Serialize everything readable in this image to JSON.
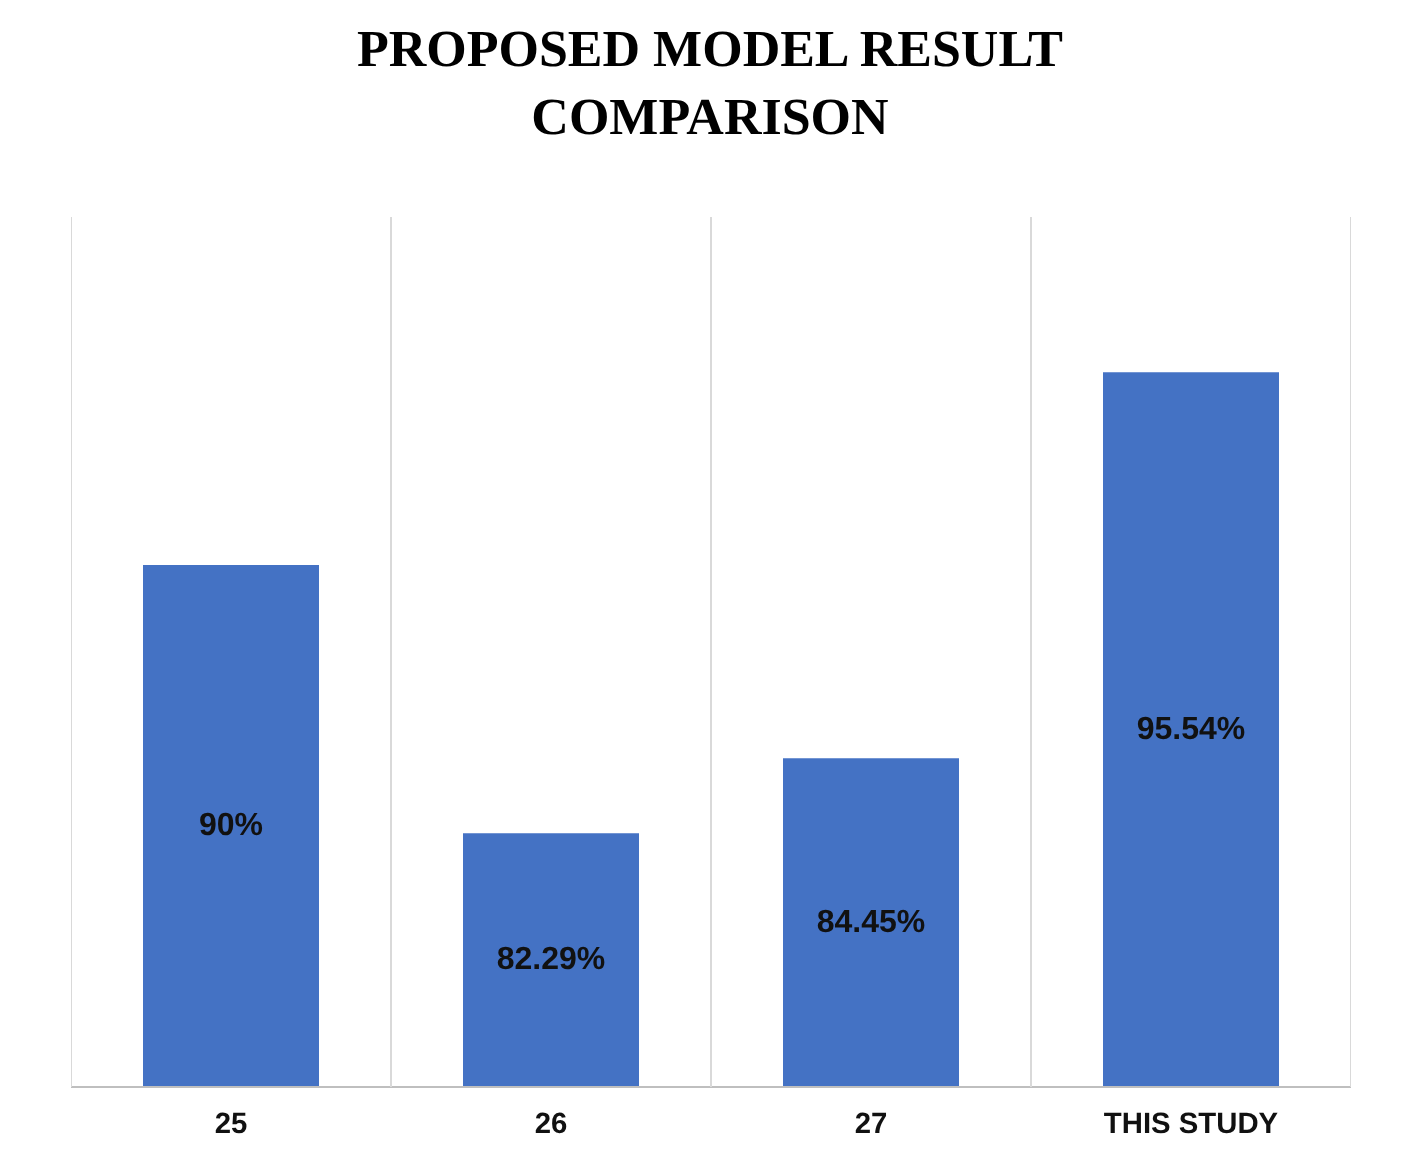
{
  "chart_data": {
    "type": "bar",
    "title": "PROPOSED MODEL RESULT\nCOMPARISON",
    "categories": [
      "25",
      "26",
      "27",
      "THIS STUDY"
    ],
    "values": [
      90,
      82.29,
      84.45,
      95.54
    ],
    "value_labels": [
      "90%",
      "82.29%",
      "84.45%",
      "95.54%"
    ],
    "color": "#4472c4",
    "ylim": [
      75,
      100
    ],
    "grid": "x"
  }
}
